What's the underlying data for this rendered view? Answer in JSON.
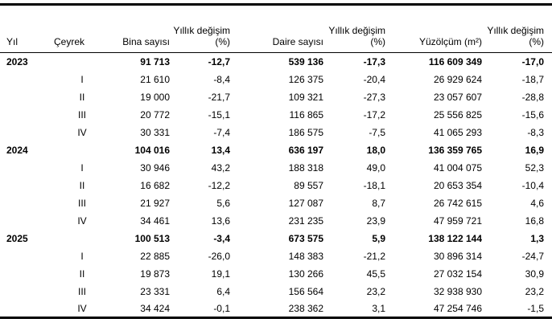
{
  "chart_data": {
    "type": "table",
    "title": "",
    "columns": [
      "Yıl",
      "Çeyrek",
      "Bina sayısı",
      "Yıllık değişim (%)",
      "Daire sayısı",
      "Yıllık değişim (%)",
      "Yüzölçüm (m²)",
      "Yıllık değişim (%)"
    ],
    "row_keys": [
      "yil",
      "ceyrek",
      "bina",
      "bina_degisim",
      "daire",
      "daire_degisim",
      "yuzolcum",
      "yuzolcum_degisim"
    ],
    "rows": [
      {
        "yil": "2023",
        "ceyrek": "",
        "bina": "91 713",
        "bina_degisim": "-12,7",
        "daire": "539 136",
        "daire_degisim": "-17,3",
        "yuzolcum": "116 609 349",
        "yuzolcum_degisim": "-17,0"
      },
      {
        "yil": "",
        "ceyrek": "I",
        "bina": "21 610",
        "bina_degisim": "-8,4",
        "daire": "126 375",
        "daire_degisim": "-20,4",
        "yuzolcum": "26 929 624",
        "yuzolcum_degisim": "-18,7"
      },
      {
        "yil": "",
        "ceyrek": "II",
        "bina": "19 000",
        "bina_degisim": "-21,7",
        "daire": "109 321",
        "daire_degisim": "-27,3",
        "yuzolcum": "23 057 607",
        "yuzolcum_degisim": "-28,8"
      },
      {
        "yil": "",
        "ceyrek": "III",
        "bina": "20 772",
        "bina_degisim": "-15,1",
        "daire": "116 865",
        "daire_degisim": "-17,2",
        "yuzolcum": "25 556 825",
        "yuzolcum_degisim": "-15,6"
      },
      {
        "yil": "",
        "ceyrek": "IV",
        "bina": "30 331",
        "bina_degisim": "-7,4",
        "daire": "186 575",
        "daire_degisim": "-7,5",
        "yuzolcum": "41 065 293",
        "yuzolcum_degisim": "-8,3"
      },
      {
        "yil": "2024",
        "ceyrek": "",
        "bina": "104 016",
        "bina_degisim": "13,4",
        "daire": "636 197",
        "daire_degisim": "18,0",
        "yuzolcum": "136 359 765",
        "yuzolcum_degisim": "16,9"
      },
      {
        "yil": "",
        "ceyrek": "I",
        "bina": "30 946",
        "bina_degisim": "43,2",
        "daire": "188 318",
        "daire_degisim": "49,0",
        "yuzolcum": "41 004 075",
        "yuzolcum_degisim": "52,3"
      },
      {
        "yil": "",
        "ceyrek": "II",
        "bina": "16 682",
        "bina_degisim": "-12,2",
        "daire": "89 557",
        "daire_degisim": "-18,1",
        "yuzolcum": "20 653 354",
        "yuzolcum_degisim": "-10,4"
      },
      {
        "yil": "",
        "ceyrek": "III",
        "bina": "21 927",
        "bina_degisim": "5,6",
        "daire": "127 087",
        "daire_degisim": "8,7",
        "yuzolcum": "26 742 615",
        "yuzolcum_degisim": "4,6"
      },
      {
        "yil": "",
        "ceyrek": "IV",
        "bina": "34 461",
        "bina_degisim": "13,6",
        "daire": "231 235",
        "daire_degisim": "23,9",
        "yuzolcum": "47 959 721",
        "yuzolcum_degisim": "16,8"
      },
      {
        "yil": "2025",
        "ceyrek": "",
        "bina": "100 513",
        "bina_degisim": "-3,4",
        "daire": "673 575",
        "daire_degisim": "5,9",
        "yuzolcum": "138 122 144",
        "yuzolcum_degisim": "1,3"
      },
      {
        "yil": "",
        "ceyrek": "I",
        "bina": "22 885",
        "bina_degisim": "-26,0",
        "daire": "148 383",
        "daire_degisim": "-21,2",
        "yuzolcum": "30 896 314",
        "yuzolcum_degisim": "-24,7"
      },
      {
        "yil": "",
        "ceyrek": "II",
        "bina": "19 873",
        "bina_degisim": "19,1",
        "daire": "130 266",
        "daire_degisim": "45,5",
        "yuzolcum": "27 032 154",
        "yuzolcum_degisim": "30,9"
      },
      {
        "yil": "",
        "ceyrek": "III",
        "bina": "23 331",
        "bina_degisim": "6,4",
        "daire": "156 564",
        "daire_degisim": "23,2",
        "yuzolcum": "32 938 930",
        "yuzolcum_degisim": "23,2"
      },
      {
        "yil": "",
        "ceyrek": "IV",
        "bina": "34 424",
        "bina_degisim": "-0,1",
        "daire": "238 362",
        "daire_degisim": "3,1",
        "yuzolcum": "47 254 746",
        "yuzolcum_degisim": "-1,5"
      }
    ],
    "colors": {
      "text": "#000000",
      "background": "#ffffff",
      "border": "#000000"
    }
  }
}
